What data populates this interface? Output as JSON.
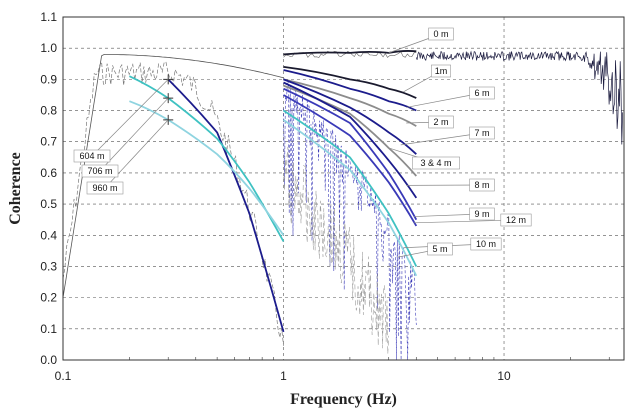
{
  "chart_data": {
    "type": "line",
    "title": "",
    "xlabel": "Frequency (Hz)",
    "ylabel": "Coherence",
    "xscale": "log",
    "xlim": [
      0.1,
      35
    ],
    "ylim": [
      0.0,
      1.1
    ],
    "x_ticks": [
      0.1,
      1,
      10
    ],
    "x_tick_labels": [
      "0.1",
      "1",
      "10"
    ],
    "y_ticks": [
      0.0,
      0.1,
      0.2,
      0.3,
      0.4,
      0.5,
      0.6,
      0.7,
      0.8,
      0.9,
      1.0,
      1.1
    ],
    "y_tick_labels": [
      "0.0",
      "0.1",
      "0.2",
      "0.3",
      "0.4",
      "0.5",
      "0.6",
      "0.7",
      "0.8",
      "0.9",
      "1.0",
      "1.1"
    ],
    "grid": true,
    "colors": {
      "black": "#1a1a2e",
      "navy": "#1c1c8c",
      "blue": "#3a3ab8",
      "gray": "#8c8c8c",
      "light_gray": "#b4b4b4",
      "cyan": "#3fc2c2",
      "light_cyan": "#8fd4e0"
    },
    "series": [
      {
        "name": "604 m",
        "color": "navy",
        "x": [
          0.3,
          0.5,
          0.7,
          1.0
        ],
        "y": [
          0.9,
          0.73,
          0.47,
          0.09
        ]
      },
      {
        "name": "706 m",
        "color": "cyan",
        "x": [
          0.2,
          0.3,
          0.5,
          0.7,
          1.0
        ],
        "y": [
          0.91,
          0.84,
          0.71,
          0.57,
          0.38
        ]
      },
      {
        "name": "960 m",
        "color": "light_cyan",
        "x": [
          0.2,
          0.3,
          0.5,
          0.7,
          1.0
        ],
        "y": [
          0.83,
          0.77,
          0.66,
          0.55,
          0.4
        ]
      },
      {
        "name": "0 m",
        "color": "black",
        "x": [
          1.0,
          2.0,
          3.0,
          4.0
        ],
        "y": [
          0.98,
          0.985,
          0.985,
          0.99
        ]
      },
      {
        "name": "1m",
        "color": "black",
        "x": [
          1.0,
          2.0,
          3.0,
          4.0
        ],
        "y": [
          0.94,
          0.9,
          0.87,
          0.84
        ]
      },
      {
        "name": "6 m",
        "color": "navy",
        "x": [
          1.0,
          2.0,
          3.0,
          4.0
        ],
        "y": [
          0.93,
          0.87,
          0.83,
          0.8
        ]
      },
      {
        "name": "2 m",
        "color": "gray",
        "x": [
          1.0,
          2.0,
          3.0,
          4.0
        ],
        "y": [
          0.9,
          0.84,
          0.79,
          0.75
        ]
      },
      {
        "name": "7 m",
        "color": "navy",
        "x": [
          1.0,
          2.0,
          3.0,
          4.0
        ],
        "y": [
          0.9,
          0.81,
          0.73,
          0.66
        ]
      },
      {
        "name": "3 & 4 m",
        "color": "gray",
        "x": [
          1.0,
          2.0,
          3.0,
          4.0
        ],
        "y": [
          0.88,
          0.79,
          0.68,
          0.59
        ]
      },
      {
        "name": "8 m",
        "color": "navy",
        "x": [
          1.0,
          2.0,
          3.0,
          4.0
        ],
        "y": [
          0.89,
          0.78,
          0.64,
          0.52
        ]
      },
      {
        "name": "9 m",
        "color": "blue",
        "x": [
          1.0,
          2.0,
          3.0,
          4.0
        ],
        "y": [
          0.87,
          0.76,
          0.6,
          0.45
        ]
      },
      {
        "name": "12 m",
        "color": "blue",
        "x": [
          1.0,
          2.0,
          3.0,
          4.0
        ],
        "y": [
          0.85,
          0.72,
          0.57,
          0.43
        ]
      },
      {
        "name": "10 m",
        "color": "cyan",
        "x": [
          1.0,
          2.0,
          3.0,
          4.0
        ],
        "y": [
          0.8,
          0.65,
          0.47,
          0.3
        ]
      },
      {
        "name": "5 m",
        "color": "light_cyan",
        "x": [
          1.0,
          2.0,
          3.0,
          4.0
        ],
        "y": [
          0.77,
          0.61,
          0.44,
          0.27
        ]
      }
    ],
    "annotations": [
      "0 m",
      "1m",
      "6 m",
      "2 m",
      "7 m",
      "3 & 4 m",
      "8 m",
      "9 m",
      "12 m",
      "10 m",
      "5 m",
      "604 m",
      "706 m",
      "960 m"
    ]
  }
}
